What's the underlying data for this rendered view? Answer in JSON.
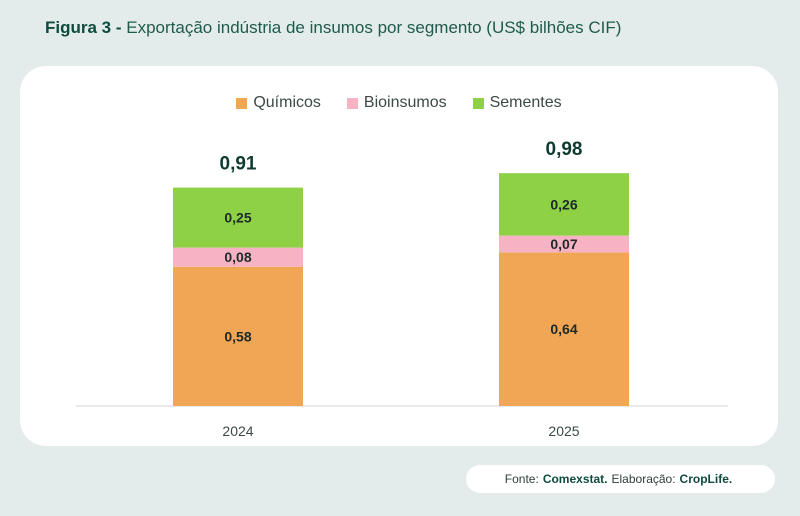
{
  "figure": {
    "title_prefix": "Figura 3 -",
    "title_text": "Exportação indústria de insumos por segmento (US$ bilhões CIF)"
  },
  "source": {
    "fonte_label": "Fonte:",
    "fonte_value": "Comexstat.",
    "elaboracao_label": "Elaboração:",
    "elaboracao_value": "CropLife."
  },
  "colors": {
    "quimicos": "#f0a654",
    "bioinsumos": "#f7b3c4",
    "sementes": "#8fd145",
    "title_green": "#0f4a3e"
  },
  "chart_data": {
    "type": "bar",
    "stacked": true,
    "categories": [
      "2024",
      "2025"
    ],
    "series": [
      {
        "name": "Químicos",
        "values": [
          0.58,
          0.64
        ],
        "labels": [
          "0,58",
          "0,64"
        ]
      },
      {
        "name": "Bioinsumos",
        "values": [
          0.08,
          0.07
        ],
        "labels": [
          "0,08",
          "0,07"
        ]
      },
      {
        "name": "Sementes",
        "values": [
          0.25,
          0.26
        ],
        "labels": [
          "0,25",
          "0,26"
        ]
      }
    ],
    "totals": [
      0.91,
      0.98
    ],
    "total_labels": [
      "0,91",
      "0,98"
    ],
    "ylim": [
      0,
      1.0
    ],
    "legend_position": "top-center",
    "grid": false,
    "y_axis_visible": false
  }
}
